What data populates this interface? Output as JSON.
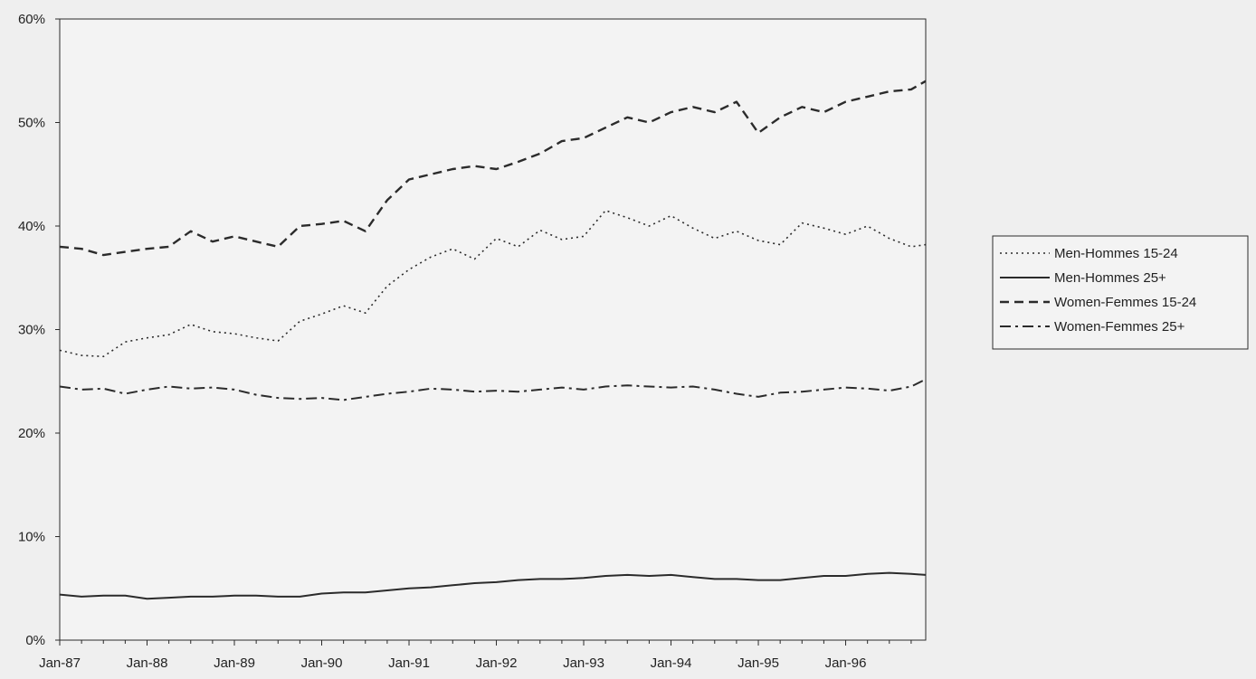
{
  "colors": {
    "background": "#efefef",
    "plot_background": "#f3f3f3",
    "line": "#2b2b2b",
    "axis": "#2b2b2b"
  },
  "chart_data": {
    "type": "line",
    "title": "",
    "xlabel": "",
    "ylabel": "",
    "y_format": "percent",
    "ylim": [
      0,
      60
    ],
    "yticks": [
      0,
      10,
      20,
      30,
      40,
      50,
      60
    ],
    "ytick_labels": [
      "0%",
      "10%",
      "20%",
      "30%",
      "40%",
      "50%",
      "60%"
    ],
    "x_start": "1987-01",
    "x_end": "1996-12",
    "xticks": [
      "1987-01",
      "1988-01",
      "1989-01",
      "1990-01",
      "1991-01",
      "1992-01",
      "1993-01",
      "1994-01",
      "1995-01",
      "1996-01"
    ],
    "xtick_labels": [
      "Jan-87",
      "Jan-88",
      "Jan-89",
      "Jan-90",
      "Jan-91",
      "Jan-92",
      "Jan-93",
      "Jan-94",
      "Jan-95",
      "Jan-96"
    ],
    "legend_position": "right",
    "grid": false,
    "series": [
      {
        "name": "Men-Hommes 15-24",
        "dash": "dotted",
        "x": [
          "1987-01",
          "1987-04",
          "1987-07",
          "1987-10",
          "1988-01",
          "1988-04",
          "1988-07",
          "1988-10",
          "1989-01",
          "1989-04",
          "1989-07",
          "1989-10",
          "1990-01",
          "1990-04",
          "1990-07",
          "1990-10",
          "1991-01",
          "1991-04",
          "1991-07",
          "1991-10",
          "1992-01",
          "1992-04",
          "1992-07",
          "1992-10",
          "1993-01",
          "1993-04",
          "1993-07",
          "1993-10",
          "1994-01",
          "1994-04",
          "1994-07",
          "1994-10",
          "1995-01",
          "1995-04",
          "1995-07",
          "1995-10",
          "1996-01",
          "1996-04",
          "1996-07",
          "1996-10",
          "1996-12"
        ],
        "values": [
          28.0,
          27.5,
          27.4,
          28.8,
          29.2,
          29.5,
          30.5,
          29.8,
          29.6,
          29.2,
          28.9,
          30.8,
          31.5,
          32.3,
          31.6,
          34.2,
          35.8,
          37.0,
          37.8,
          36.8,
          38.8,
          38.0,
          39.6,
          38.7,
          39.0,
          41.5,
          40.8,
          40.0,
          41.0,
          39.8,
          38.8,
          39.5,
          38.6,
          38.2,
          40.3,
          39.8,
          39.2,
          40.0,
          38.8,
          38.0,
          38.2
        ]
      },
      {
        "name": "Men-Hommes 25+",
        "dash": "solid",
        "x": [
          "1987-01",
          "1987-04",
          "1987-07",
          "1987-10",
          "1988-01",
          "1988-04",
          "1988-07",
          "1988-10",
          "1989-01",
          "1989-04",
          "1989-07",
          "1989-10",
          "1990-01",
          "1990-04",
          "1990-07",
          "1990-10",
          "1991-01",
          "1991-04",
          "1991-07",
          "1991-10",
          "1992-01",
          "1992-04",
          "1992-07",
          "1992-10",
          "1993-01",
          "1993-04",
          "1993-07",
          "1993-10",
          "1994-01",
          "1994-04",
          "1994-07",
          "1994-10",
          "1995-01",
          "1995-04",
          "1995-07",
          "1995-10",
          "1996-01",
          "1996-04",
          "1996-07",
          "1996-10",
          "1996-12"
        ],
        "values": [
          4.4,
          4.2,
          4.3,
          4.3,
          4.0,
          4.1,
          4.2,
          4.2,
          4.3,
          4.3,
          4.2,
          4.2,
          4.5,
          4.6,
          4.6,
          4.8,
          5.0,
          5.1,
          5.3,
          5.5,
          5.6,
          5.8,
          5.9,
          5.9,
          6.0,
          6.2,
          6.3,
          6.2,
          6.3,
          6.1,
          5.9,
          5.9,
          5.8,
          5.8,
          6.0,
          6.2,
          6.2,
          6.4,
          6.5,
          6.4,
          6.3
        ]
      },
      {
        "name": "Women-Femmes 15-24",
        "dash": "dashed",
        "x": [
          "1987-01",
          "1987-04",
          "1987-07",
          "1987-10",
          "1988-01",
          "1988-04",
          "1988-07",
          "1988-10",
          "1989-01",
          "1989-04",
          "1989-07",
          "1989-10",
          "1990-01",
          "1990-04",
          "1990-07",
          "1990-10",
          "1991-01",
          "1991-04",
          "1991-07",
          "1991-10",
          "1992-01",
          "1992-04",
          "1992-07",
          "1992-10",
          "1993-01",
          "1993-04",
          "1993-07",
          "1993-10",
          "1994-01",
          "1994-04",
          "1994-07",
          "1994-10",
          "1995-01",
          "1995-04",
          "1995-07",
          "1995-10",
          "1996-01",
          "1996-04",
          "1996-07",
          "1996-10",
          "1996-12"
        ],
        "values": [
          38.0,
          37.8,
          37.2,
          37.5,
          37.8,
          38.0,
          39.5,
          38.5,
          39.0,
          38.5,
          38.0,
          40.0,
          40.2,
          40.5,
          39.5,
          42.5,
          44.5,
          45.0,
          45.5,
          45.8,
          45.5,
          46.2,
          47.0,
          48.2,
          48.5,
          49.5,
          50.5,
          50.0,
          51.0,
          51.5,
          51.0,
          52.0,
          49.0,
          50.5,
          51.5,
          51.0,
          52.0,
          52.5,
          53.0,
          53.2,
          54.0
        ]
      },
      {
        "name": "Women-Femmes 25+",
        "dash": "dash-dot",
        "x": [
          "1987-01",
          "1987-04",
          "1987-07",
          "1987-10",
          "1988-01",
          "1988-04",
          "1988-07",
          "1988-10",
          "1989-01",
          "1989-04",
          "1989-07",
          "1989-10",
          "1990-01",
          "1990-04",
          "1990-07",
          "1990-10",
          "1991-01",
          "1991-04",
          "1991-07",
          "1991-10",
          "1992-01",
          "1992-04",
          "1992-07",
          "1992-10",
          "1993-01",
          "1993-04",
          "1993-07",
          "1993-10",
          "1994-01",
          "1994-04",
          "1994-07",
          "1994-10",
          "1995-01",
          "1995-04",
          "1995-07",
          "1995-10",
          "1996-01",
          "1996-04",
          "1996-07",
          "1996-10",
          "1996-12"
        ],
        "values": [
          24.5,
          24.2,
          24.3,
          23.8,
          24.2,
          24.5,
          24.3,
          24.4,
          24.2,
          23.7,
          23.4,
          23.3,
          23.4,
          23.2,
          23.5,
          23.8,
          24.0,
          24.3,
          24.2,
          24.0,
          24.1,
          24.0,
          24.2,
          24.4,
          24.2,
          24.5,
          24.6,
          24.5,
          24.4,
          24.5,
          24.2,
          23.8,
          23.5,
          23.9,
          24.0,
          24.2,
          24.4,
          24.3,
          24.1,
          24.5,
          25.2
        ]
      }
    ]
  }
}
